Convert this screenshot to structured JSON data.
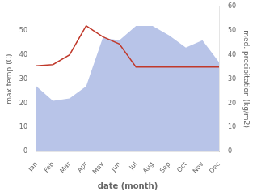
{
  "chart_data": {
    "type": "line",
    "categories": [
      "Jan",
      "Feb",
      "Mar",
      "Apr",
      "May",
      "Jun",
      "Jul",
      "Aug",
      "Sep",
      "Oct",
      "Nov",
      "Dec"
    ],
    "series": [
      {
        "type": "line",
        "color": "#c0392b",
        "values": [
          35.5,
          36.0,
          40.0,
          52.0,
          47.5,
          44.5,
          35.0,
          35.0,
          35.0,
          35.0,
          35.0,
          35.0
        ]
      },
      {
        "type": "area",
        "color": "#b8c4e8",
        "axis": "y2",
        "values": [
          27.0,
          21.0,
          22.0,
          27.0,
          47.0,
          46.0,
          52.0,
          52.0,
          48.0,
          43.0,
          46.0,
          37.0
        ]
      }
    ],
    "xlabel": "date (month)",
    "ylabel": "max temp (C)",
    "y2label": "med. precipitation (kg/m2)",
    "ylim": [
      0,
      60
    ],
    "yticks": [
      0,
      10,
      20,
      30,
      40,
      50
    ],
    "y2lim": [
      0,
      60
    ],
    "y2ticks": [
      0,
      10,
      20,
      30,
      40,
      50,
      60
    ],
    "grid": false
  }
}
